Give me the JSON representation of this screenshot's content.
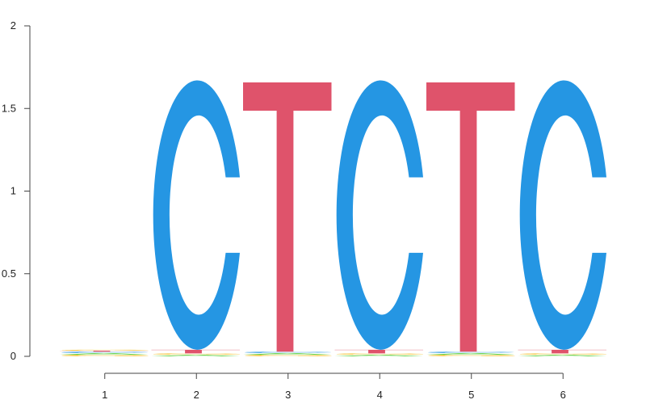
{
  "chart_data": {
    "type": "sequence-logo",
    "xlabel": "",
    "ylabel": "",
    "ylim": [
      0,
      2
    ],
    "y_ticks": [
      {
        "value": 0,
        "label": "0"
      },
      {
        "value": 0.5,
        "label": "0.5"
      },
      {
        "value": 1,
        "label": "1"
      },
      {
        "value": 1.5,
        "label": "1.5"
      },
      {
        "value": 2,
        "label": "2"
      }
    ],
    "positions": [
      "1",
      "2",
      "3",
      "4",
      "5",
      "6"
    ],
    "colors": {
      "A": "#5ccf3d",
      "C": "#2596e3",
      "G": "#f2c230",
      "T": "#df536b"
    },
    "stacks": [
      [
        {
          "letter": "G",
          "height": 0.01
        },
        {
          "letter": "A",
          "height": 0.01
        },
        {
          "letter": "C",
          "height": 0.008
        },
        {
          "letter": "T",
          "height": 0.006
        },
        {
          "letter": "G",
          "height": 0.006
        },
        {
          "letter": "T_",
          "height": 0
        }
      ],
      [
        {
          "letter": "A",
          "height": 0.01
        },
        {
          "letter": "G",
          "height": 0.008
        },
        {
          "letter": "T",
          "height": 0.022
        },
        {
          "letter": "C",
          "height": 1.63
        }
      ],
      [
        {
          "letter": "G",
          "height": 0.01
        },
        {
          "letter": "A",
          "height": 0.01
        },
        {
          "letter": "C",
          "height": 0.008
        },
        {
          "letter": "T",
          "height": 1.63
        }
      ],
      [
        {
          "letter": "A",
          "height": 0.01
        },
        {
          "letter": "G",
          "height": 0.008
        },
        {
          "letter": "T",
          "height": 0.022
        },
        {
          "letter": "C",
          "height": 1.63
        }
      ],
      [
        {
          "letter": "G",
          "height": 0.01
        },
        {
          "letter": "A",
          "height": 0.01
        },
        {
          "letter": "C",
          "height": 0.008
        },
        {
          "letter": "T",
          "height": 1.63
        }
      ],
      [
        {
          "letter": "A",
          "height": 0.01
        },
        {
          "letter": "G",
          "height": 0.008
        },
        {
          "letter": "T",
          "height": 0.022
        },
        {
          "letter": "C",
          "height": 1.63
        }
      ]
    ]
  }
}
